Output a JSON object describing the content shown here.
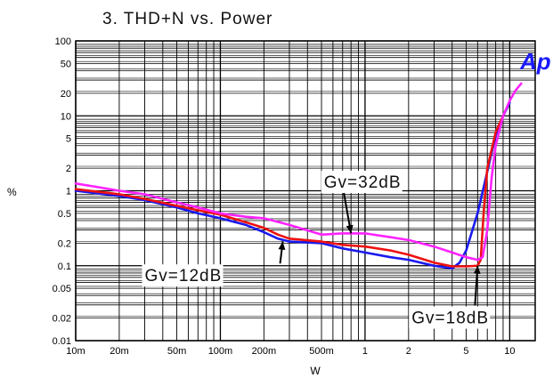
{
  "chart_data": {
    "type": "line",
    "title": "3. THD+N vs. Power",
    "xlabel": "W",
    "ylabel": "%",
    "xscale": "log",
    "yscale": "log",
    "xlim": [
      0.01,
      15
    ],
    "ylim": [
      0.01,
      100
    ],
    "grid": true,
    "x_ticks": [
      {
        "value": 0.01,
        "label": "10m"
      },
      {
        "value": 0.02,
        "label": "20m"
      },
      {
        "value": 0.05,
        "label": "50m"
      },
      {
        "value": 0.1,
        "label": "100m"
      },
      {
        "value": 0.2,
        "label": "200m"
      },
      {
        "value": 0.5,
        "label": "500m"
      },
      {
        "value": 1,
        "label": "1"
      },
      {
        "value": 2,
        "label": "2"
      },
      {
        "value": 5,
        "label": "5"
      },
      {
        "value": 10,
        "label": "10"
      }
    ],
    "y_ticks": [
      {
        "value": 100,
        "label": "100"
      },
      {
        "value": 50,
        "label": "50"
      },
      {
        "value": 20,
        "label": "20"
      },
      {
        "value": 10,
        "label": "10"
      },
      {
        "value": 5,
        "label": "5"
      },
      {
        "value": 2,
        "label": "2"
      },
      {
        "value": 1,
        "label": "1"
      },
      {
        "value": 0.5,
        "label": "0.5"
      },
      {
        "value": 0.2,
        "label": "0.2"
      },
      {
        "value": 0.1,
        "label": "0.1"
      },
      {
        "value": 0.05,
        "label": "0.05"
      },
      {
        "value": 0.02,
        "label": "0.02"
      },
      {
        "value": 0.01,
        "label": "0.01"
      }
    ],
    "series": [
      {
        "color": "#1a1aee",
        "x": [
          0.01,
          0.02,
          0.03,
          0.05,
          0.07,
          0.1,
          0.15,
          0.2,
          0.25,
          0.3,
          0.5,
          0.7,
          1,
          1.5,
          2,
          3,
          4,
          4.5,
          5,
          6,
          7,
          8,
          9,
          10
        ],
        "y": [
          1.0,
          0.85,
          0.75,
          0.6,
          0.5,
          0.43,
          0.35,
          0.28,
          0.23,
          0.21,
          0.2,
          0.17,
          0.15,
          0.13,
          0.12,
          0.1,
          0.092,
          0.11,
          0.16,
          0.5,
          1.8,
          5.5,
          10,
          15
        ]
      },
      {
        "color": "#ee1111",
        "x": [
          0.01,
          0.02,
          0.03,
          0.05,
          0.07,
          0.1,
          0.15,
          0.2,
          0.25,
          0.3,
          0.5,
          0.7,
          1,
          1.5,
          2,
          3,
          4,
          5,
          6,
          6.3,
          6.6,
          7,
          8,
          9
        ],
        "y": [
          1.05,
          0.9,
          0.78,
          0.63,
          0.55,
          0.48,
          0.38,
          0.32,
          0.26,
          0.23,
          0.21,
          0.19,
          0.18,
          0.16,
          0.14,
          0.11,
          0.098,
          0.098,
          0.1,
          0.12,
          0.5,
          2.0,
          6.0,
          10
        ]
      },
      {
        "color": "#ff22ff",
        "x": [
          0.01,
          0.015,
          0.02,
          0.03,
          0.05,
          0.07,
          0.1,
          0.15,
          0.2,
          0.3,
          0.5,
          0.7,
          1,
          1.5,
          2,
          3,
          4,
          5,
          6,
          6.5,
          7,
          7.5,
          8,
          9,
          10,
          11,
          12
        ],
        "y": [
          1.25,
          1.1,
          1.0,
          0.9,
          0.7,
          0.6,
          0.5,
          0.45,
          0.43,
          0.35,
          0.26,
          0.27,
          0.27,
          0.24,
          0.22,
          0.18,
          0.15,
          0.13,
          0.12,
          0.13,
          0.3,
          1.5,
          4.0,
          10.0,
          16.0,
          22.0,
          27.0
        ]
      }
    ],
    "annotations": [
      {
        "text": "Gv=32dB",
        "x": 0.52,
        "y": 1.1,
        "arrow_to": [
          0.8,
          0.27
        ]
      },
      {
        "text": "Gv=12dB",
        "x": 0.03,
        "y": 0.062,
        "arrow_to": [
          0.27,
          0.21
        ]
      },
      {
        "text": "Gv=18dB",
        "x": 2.1,
        "y": 0.017,
        "arrow_to": [
          6.0,
          0.1
        ]
      }
    ],
    "logo": "Ap"
  }
}
